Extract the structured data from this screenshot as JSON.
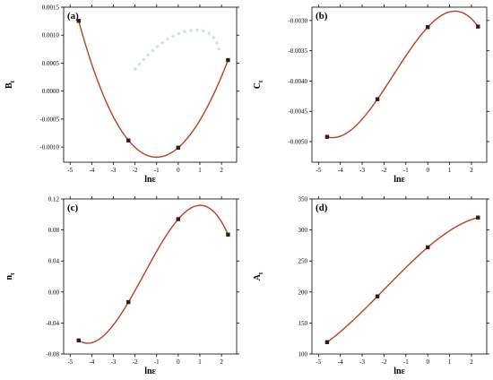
{
  "chart_data": [
    {
      "type": "line",
      "panel_label": "(a)",
      "xlabel": "lnε",
      "ylabel_main": "B",
      "ylabel_sub": "t",
      "xlim": [
        -5.3,
        2.7
      ],
      "ylim": [
        -0.00127,
        0.0015
      ],
      "xticks": [
        -5,
        -4,
        -3,
        -2,
        -1,
        0,
        1,
        2
      ],
      "xtick_labels": [
        "-5",
        "-4",
        "-3",
        "-2",
        "-1",
        "0",
        "1",
        "2"
      ],
      "yticks": [
        -0.001,
        -0.0005,
        0,
        0.0005,
        0.001,
        0.0015
      ],
      "ytick_labels": [
        "-0.0010",
        "-0.0005",
        "0.0000",
        "0.0005",
        "0.0010",
        "0.0015"
      ],
      "x": [
        -4.605,
        -2.303,
        0,
        2.303
      ],
      "y": [
        0.001255,
        -0.00088,
        -0.00101,
        0.000555
      ],
      "fit_degree": 3,
      "colors": {
        "curve": "#b5421f",
        "marker": "#3a1a10"
      }
    },
    {
      "type": "line",
      "panel_label": "(b)",
      "xlabel": "lnε",
      "ylabel_main": "C",
      "ylabel_sub": "t",
      "xlim": [
        -5.3,
        2.7
      ],
      "ylim": [
        -0.00534,
        -0.00278
      ],
      "xticks": [
        -5,
        -4,
        -3,
        -2,
        -1,
        0,
        1,
        2
      ],
      "xtick_labels": [
        "-5",
        "-4",
        "-3",
        "-2",
        "-1",
        "0",
        "1",
        "2"
      ],
      "yticks": [
        -0.005,
        -0.0045,
        -0.004,
        -0.0035,
        -0.003
      ],
      "ytick_labels": [
        "-0.0050",
        "-0.0045",
        "-0.0040",
        "-0.0035",
        "-0.0030"
      ],
      "x": [
        -4.605,
        -2.303,
        0,
        2.303
      ],
      "y": [
        -0.00492,
        -0.0043,
        -0.00311,
        -0.0031
      ],
      "fit_degree": 3,
      "colors": {
        "curve": "#b5421f",
        "marker": "#3a1a10"
      }
    },
    {
      "type": "line",
      "panel_label": "(c)",
      "xlabel": "lnε",
      "ylabel_main": "n",
      "ylabel_sub": "t",
      "xlim": [
        -5.3,
        2.7
      ],
      "ylim": [
        -0.08,
        0.12
      ],
      "xticks": [
        -5,
        -4,
        -3,
        -2,
        -1,
        0,
        1,
        2
      ],
      "xtick_labels": [
        "-5",
        "-4",
        "-3",
        "-2",
        "-1",
        "0",
        "1",
        "2"
      ],
      "yticks": [
        -0.08,
        -0.04,
        0,
        0.04,
        0.08,
        0.12
      ],
      "ytick_labels": [
        "-0.08",
        "-0.04",
        "0.00",
        "0.04",
        "0.08",
        "0.12"
      ],
      "x": [
        -4.605,
        -2.303,
        0,
        2.303
      ],
      "y": [
        -0.0625,
        -0.013,
        0.094,
        0.074
      ],
      "fit_degree": 3,
      "colors": {
        "curve": "#b5421f",
        "marker": "#3a1a10"
      }
    },
    {
      "type": "line",
      "panel_label": "(d)",
      "xlabel": "lnε",
      "ylabel_main": "A",
      "ylabel_sub": "t",
      "xlim": [
        -5.3,
        2.7
      ],
      "ylim": [
        100,
        350
      ],
      "xticks": [
        -5,
        -4,
        -3,
        -2,
        -1,
        0,
        1,
        2
      ],
      "xtick_labels": [
        "-5",
        "-4",
        "-3",
        "-2",
        "-1",
        "0",
        "1",
        "2"
      ],
      "yticks": [
        100,
        150,
        200,
        250,
        300,
        350
      ],
      "ytick_labels": [
        "100",
        "150",
        "200",
        "250",
        "300",
        "350"
      ],
      "x": [
        -4.605,
        -2.303,
        0,
        2.303
      ],
      "y": [
        119,
        193,
        272,
        320
      ],
      "fit_degree": 3,
      "colors": {
        "curve": "#b5421f",
        "marker": "#3a1a10"
      }
    }
  ]
}
